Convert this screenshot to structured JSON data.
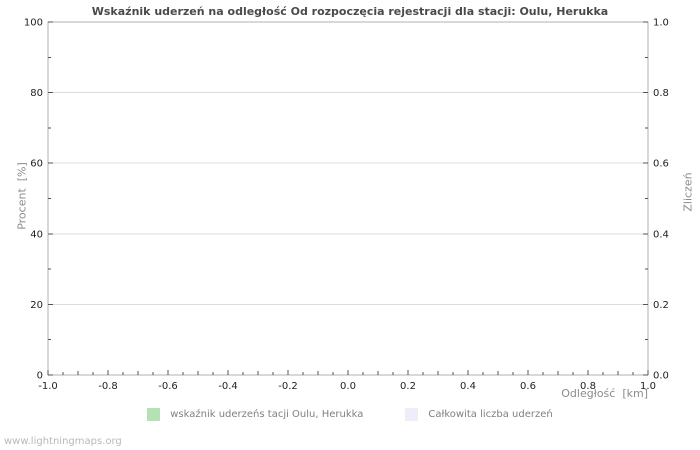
{
  "title": "Wskaźnik uderzeń na odległość Od rozpoczęcia rejestracji dla stacji: Oulu, Herukka",
  "watermark": "www.lightningmaps.org",
  "axes": {
    "left_label": "Procent  [%]",
    "right_label": "Zliczeń",
    "x_label": "Odległość  [km]"
  },
  "legend": [
    {
      "label": "wskaźnik uderzeńs tacji Oulu, Herukka",
      "color": "#b4e2b4"
    },
    {
      "label": "Całkowita liczba uderzeń",
      "color": "#eeeefa"
    }
  ],
  "colors": {
    "grid": "#dcdcdc",
    "frame": "#b0b0b0",
    "title_text": "#4a4a4a",
    "axis_label_text": "#8c8c8c",
    "legend_green": "#b4e2b4",
    "legend_lavender": "#eeeefa"
  },
  "chart_data": {
    "type": "bar",
    "title": "Wskaźnik uderzeń na odległość Od rozpoczęcia rejestracji dla stacji: Oulu, Herukka",
    "xlabel": "Odległość [km]",
    "ylabel_left": "Procent [%]",
    "ylabel_right": "Zliczeń",
    "xlim": [
      -1.0,
      1.0
    ],
    "ylim_left": [
      0,
      100
    ],
    "ylim_right": [
      0.0,
      1.0
    ],
    "x_ticks": [
      "-1.0",
      "-0.8",
      "-0.6",
      "-0.4",
      "-0.2",
      "0.0",
      "0.2",
      "0.4",
      "0.6",
      "0.8",
      "1.0"
    ],
    "left_ticks": [
      "0",
      "20",
      "40",
      "60",
      "80",
      "100"
    ],
    "right_ticks": [
      "0.0",
      "0.2",
      "0.4",
      "0.6",
      "0.8",
      "1.0"
    ],
    "grid": true,
    "legend_position": "bottom",
    "series": [
      {
        "name": "wskaźnik uderzeńs tacji Oulu, Herukka",
        "color": "#b4e2b4",
        "axis": "left",
        "values": []
      },
      {
        "name": "Całkowita liczba uderzeń",
        "color": "#eeeefa",
        "axis": "right",
        "values": []
      }
    ]
  }
}
